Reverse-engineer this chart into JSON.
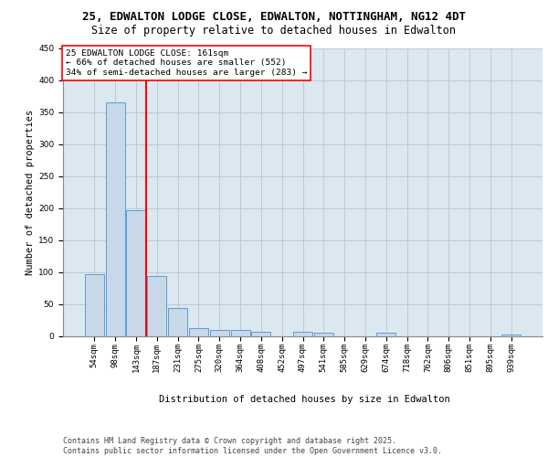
{
  "title_line1": "25, EDWALTON LODGE CLOSE, EDWALTON, NOTTINGHAM, NG12 4DT",
  "title_line2": "Size of property relative to detached houses in Edwalton",
  "xlabel": "Distribution of detached houses by size in Edwalton",
  "ylabel": "Number of detached properties",
  "categories": [
    "54sqm",
    "98sqm",
    "143sqm",
    "187sqm",
    "231sqm",
    "275sqm",
    "320sqm",
    "364sqm",
    "408sqm",
    "452sqm",
    "497sqm",
    "541sqm",
    "585sqm",
    "629sqm",
    "674sqm",
    "718sqm",
    "762sqm",
    "806sqm",
    "851sqm",
    "895sqm",
    "939sqm"
  ],
  "values": [
    97,
    365,
    197,
    93,
    43,
    12,
    9,
    9,
    7,
    0,
    6,
    5,
    0,
    0,
    5,
    0,
    0,
    0,
    0,
    0,
    2
  ],
  "bar_color": "#c8d8e8",
  "bar_edge_color": "#5b9bd5",
  "grid_color": "#c0c8d0",
  "background_color": "#dce8f0",
  "vline_color": "red",
  "vline_x_idx": 2,
  "annotation_box_text": "25 EDWALTON LODGE CLOSE: 161sqm\n← 66% of detached houses are smaller (552)\n34% of semi-detached houses are larger (283) →",
  "ylim": [
    0,
    450
  ],
  "yticks": [
    0,
    50,
    100,
    150,
    200,
    250,
    300,
    350,
    400,
    450
  ],
  "footnote": "Contains HM Land Registry data © Crown copyright and database right 2025.\nContains public sector information licensed under the Open Government Licence v3.0.",
  "title_fontsize": 9,
  "subtitle_fontsize": 8.5,
  "axis_label_fontsize": 7.5,
  "tick_fontsize": 6.5,
  "annotation_fontsize": 6.8,
  "footnote_fontsize": 6.0
}
